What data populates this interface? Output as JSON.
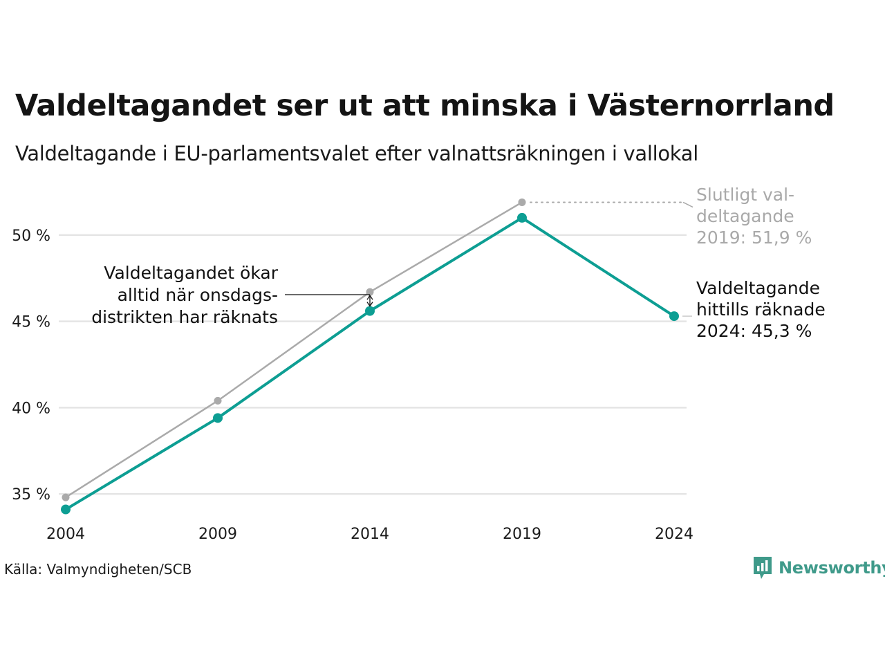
{
  "title": "Valdeltagandet ser ut att minska i Västernorrland",
  "subtitle": "Valdeltagande i EU-parlamentsvalet efter valnattsräkningen i vallokal",
  "source": "Källa: Valmyndigheten/SCB",
  "logo_text": "Newsworthy",
  "chart_data": {
    "type": "line",
    "x": [
      2004,
      2009,
      2014,
      2019,
      2024
    ],
    "x_tick_labels": [
      "2004",
      "2009",
      "2014",
      "2019",
      "2024"
    ],
    "y_ticks": [
      35,
      40,
      45,
      50
    ],
    "y_tick_labels": [
      "35 %",
      "40 %",
      "45 %",
      "50 %"
    ],
    "ylim": [
      33.2,
      53
    ],
    "grid": true,
    "series": [
      {
        "key": "final",
        "values": [
          34.8,
          40.4,
          46.7,
          51.9,
          null
        ],
        "color": "#aaaaaa"
      },
      {
        "key": "election_night",
        "values": [
          34.1,
          39.4,
          45.6,
          51.0,
          45.3
        ],
        "color": "#0d9e93"
      }
    ],
    "annotations": {
      "final_2019": [
        "Slutligt val-",
        "deltagande",
        "2019: 51,9 %"
      ],
      "current_2024": [
        "Valdeltagande",
        "hittills räknade",
        "2024: 45,3 %"
      ],
      "wednesday_note": [
        "Valdeltagandet ökar",
        "alltid när onsdags-",
        "distrikten har räknats"
      ]
    }
  }
}
